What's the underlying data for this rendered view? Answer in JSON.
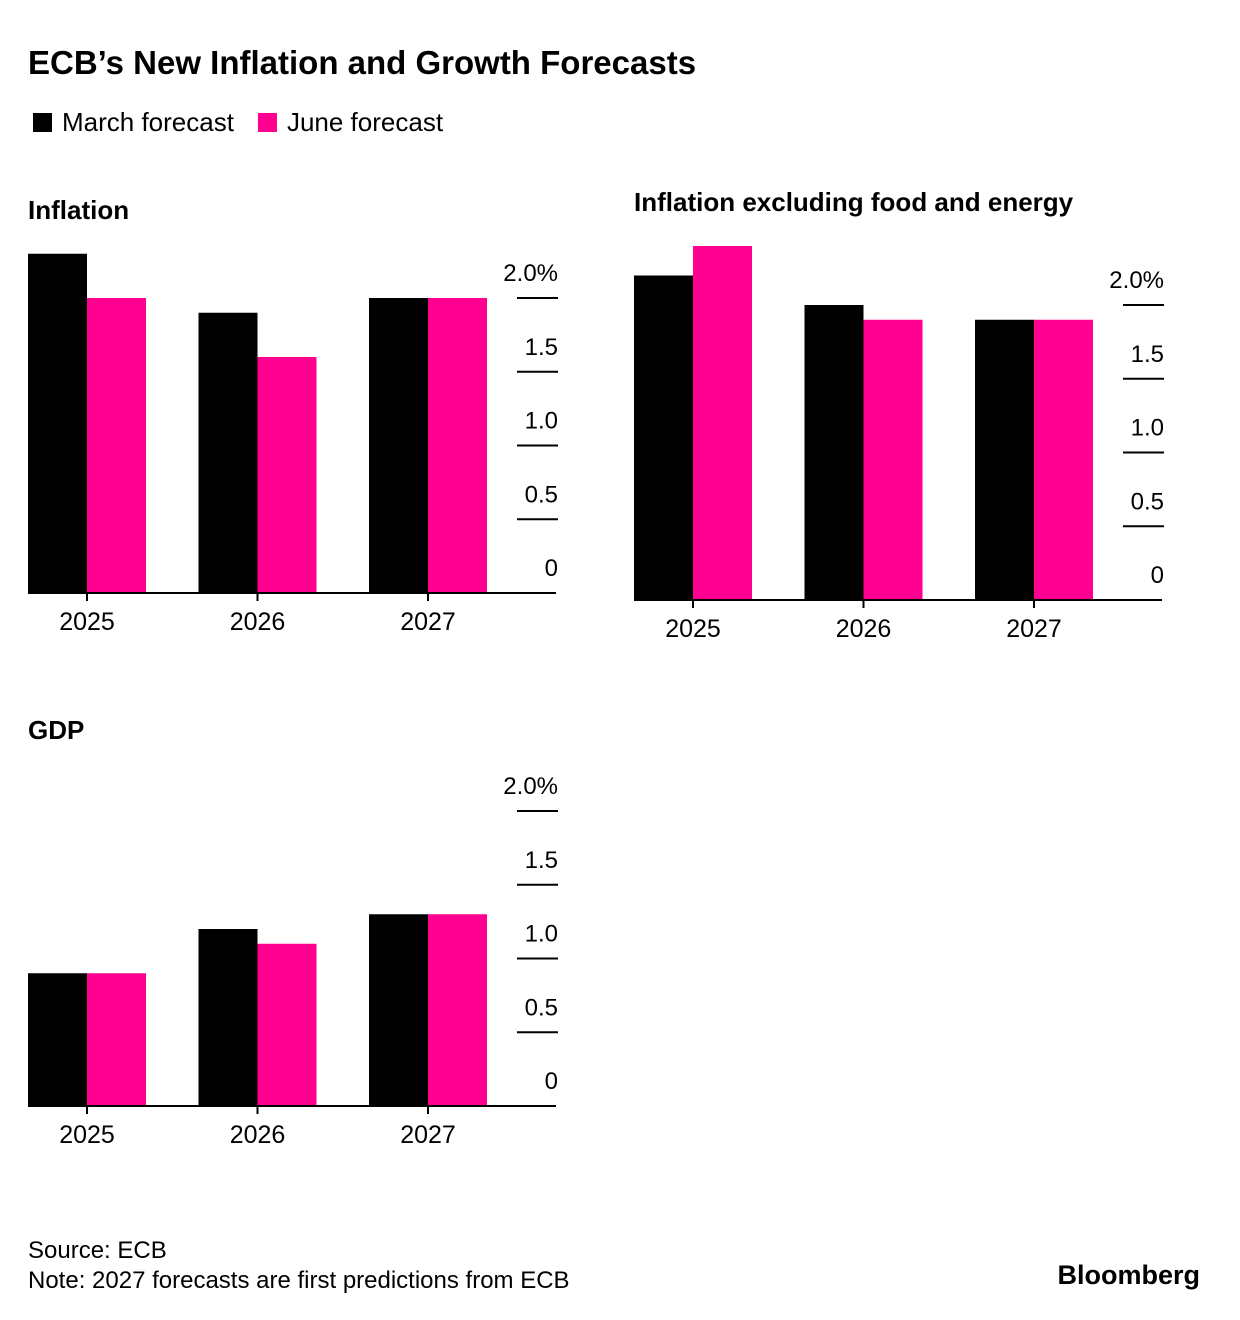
{
  "title": "ECB’s New Inflation and Growth Forecasts",
  "legend": [
    {
      "name": "March forecast",
      "color": "#000000"
    },
    {
      "name": "June forecast",
      "color": "#ff0090"
    }
  ],
  "source": "Source: ECB",
  "note": "Note: 2027 forecasts are first predictions from ECB",
  "logo": "Bloomberg",
  "chart_data": [
    {
      "type": "bar",
      "title": "Inflation",
      "categories": [
        "2025",
        "2026",
        "2027"
      ],
      "series": [
        {
          "values": [
            2.3,
            1.9,
            2.0
          ]
        },
        {
          "values": [
            2.0,
            1.6,
            2.0
          ]
        }
      ],
      "ylim": [
        0,
        2.3
      ],
      "yticks": [
        0,
        0.5,
        {
          "value": 1,
          "label": "1.0"
        },
        1.5,
        {
          "value": 2,
          "label": "2.0%"
        }
      ]
    },
    {
      "type": "bar",
      "title": "Inflation excluding food and energy",
      "categories": [
        "2025",
        "2026",
        "2027"
      ],
      "series": [
        {
          "values": [
            2.2,
            2.0,
            1.9
          ]
        },
        {
          "values": [
            2.4,
            1.9,
            1.9
          ]
        }
      ],
      "ylim": [
        0,
        2.4
      ],
      "yticks": [
        0,
        0.5,
        {
          "value": 1,
          "label": "1.0"
        },
        1.5,
        {
          "value": 2,
          "label": "2.0%"
        }
      ]
    },
    {
      "type": "bar",
      "title": "GDP",
      "categories": [
        "2025",
        "2026",
        "2027"
      ],
      "series": [
        {
          "values": [
            0.9,
            1.2,
            1.3
          ]
        },
        {
          "values": [
            0.9,
            1.1,
            1.3
          ]
        }
      ],
      "ylim": [
        0,
        2.3
      ],
      "yticks": [
        0,
        0.5,
        {
          "value": 1,
          "label": "1.0"
        },
        1.5,
        {
          "value": 2,
          "label": "2.0%"
        }
      ]
    }
  ]
}
